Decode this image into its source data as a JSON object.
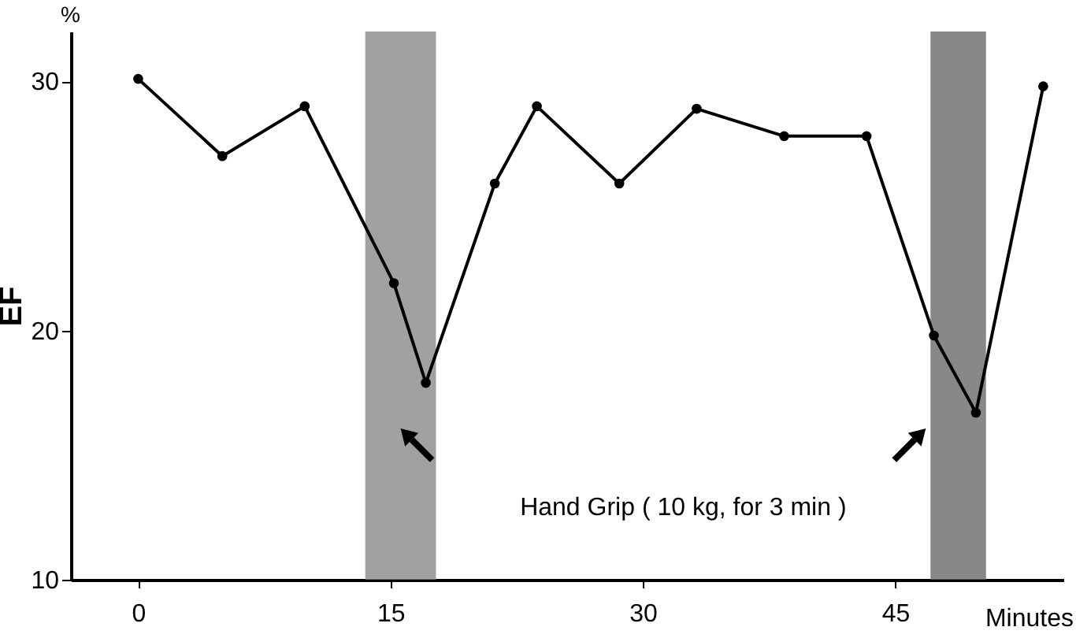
{
  "chart_data": {
    "type": "line",
    "xlabel": "Minutes",
    "ylabel": "EF",
    "x": [
      0,
      5,
      9.9,
      15.2,
      17.1,
      21.2,
      23.7,
      28.6,
      33.2,
      38.4,
      43.3,
      47.3,
      49.8,
      53.8
    ],
    "series": [
      {
        "color": "#000000",
        "values": [
          30.1,
          27,
          29,
          21.9,
          17.9,
          25.9,
          29,
          25.9,
          28.9,
          27.8,
          27.8,
          19.8,
          16.7,
          29.8
        ]
      }
    ],
    "xlim": [
      -4,
      55
    ],
    "ylim": [
      10,
      32
    ],
    "xticks": [
      0,
      15,
      30,
      45
    ],
    "yticks": [
      10,
      20,
      30
    ],
    "bands": [
      {
        "axis": "x",
        "from": 13.5,
        "to": 17.7,
        "color": "#8a8a8a"
      },
      {
        "axis": "x",
        "from": 47.1,
        "to": 50.4,
        "color": "#6a6a6a"
      }
    ],
    "annotations": [
      "%",
      "Hand Grip ( 10 kg, for 3 min )"
    ],
    "marker": "circle",
    "line_style": "solid",
    "grid": false
  }
}
